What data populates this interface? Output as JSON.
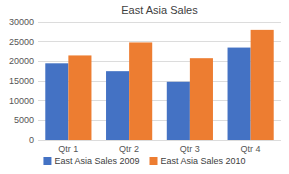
{
  "chart_data": {
    "type": "bar",
    "title": "East Asia Sales",
    "categories": [
      "Qtr 1",
      "Qtr 2",
      "Qtr 3",
      "Qtr 4"
    ],
    "series": [
      {
        "name": "East Asia Sales 2009",
        "color": "#4472C4",
        "values": [
          19500,
          17500,
          14800,
          23500
        ]
      },
      {
        "name": "East Asia Sales 2010",
        "color": "#ED7D31",
        "values": [
          21500,
          24800,
          20800,
          28000
        ]
      }
    ],
    "ylim": [
      0,
      30000
    ],
    "yticks": [
      0,
      5000,
      10000,
      15000,
      20000,
      25000,
      30000
    ],
    "grid": true,
    "legend": "bottom"
  }
}
